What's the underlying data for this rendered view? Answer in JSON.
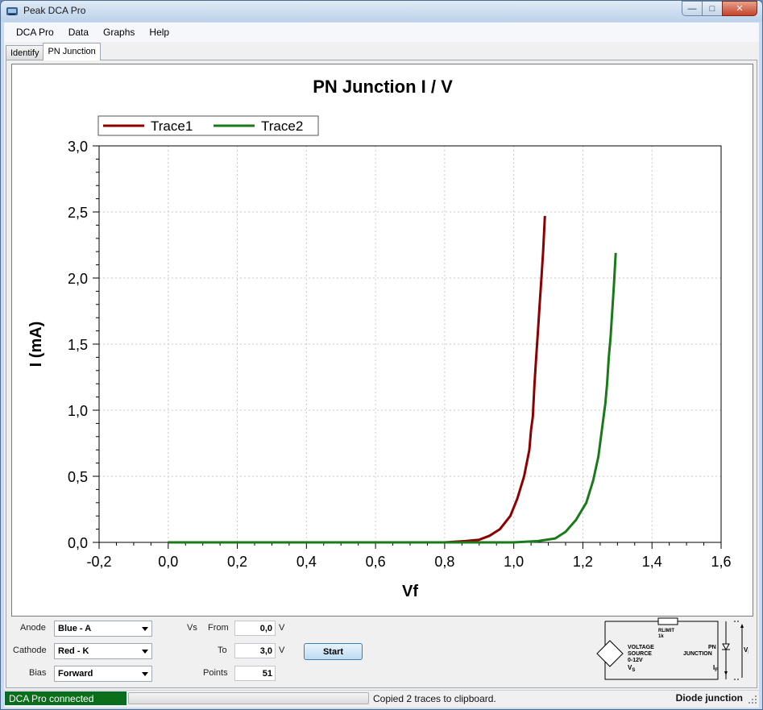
{
  "window": {
    "title": "Peak DCA Pro",
    "min_glyph": "—",
    "max_glyph": "□",
    "close_glyph": "✕"
  },
  "menu": [
    "DCA Pro",
    "Data",
    "Graphs",
    "Help"
  ],
  "tabs": [
    "Identify",
    "PN Junction"
  ],
  "chart_data": {
    "type": "line",
    "title": "PN Junction I / V",
    "xlabel": "Vf",
    "ylabel": "I (mA)",
    "xlim": [
      -0.2,
      1.6
    ],
    "ylim": [
      0.0,
      3.0
    ],
    "xticks": [
      "-0,2",
      "0,0",
      "0,2",
      "0,4",
      "0,6",
      "0,8",
      "1,0",
      "1,2",
      "1,4",
      "1,6"
    ],
    "yticks": [
      "0,0",
      "0,5",
      "1,0",
      "1,5",
      "2,0",
      "2,5",
      "3,0"
    ],
    "grid": true,
    "legend_position": "top-left",
    "series": [
      {
        "name": "Trace1",
        "color": "#8b0000",
        "points": [
          [
            0.0,
            0.0
          ],
          [
            0.4,
            0.0
          ],
          [
            0.8,
            0.0
          ],
          [
            0.86,
            0.01
          ],
          [
            0.9,
            0.02
          ],
          [
            0.93,
            0.05
          ],
          [
            0.96,
            0.1
          ],
          [
            0.99,
            0.2
          ],
          [
            1.01,
            0.33
          ],
          [
            1.03,
            0.5
          ],
          [
            1.045,
            0.7
          ],
          [
            1.05,
            0.85
          ],
          [
            1.055,
            0.95
          ],
          [
            1.06,
            1.2
          ],
          [
            1.065,
            1.4
          ],
          [
            1.07,
            1.6
          ],
          [
            1.075,
            1.8
          ],
          [
            1.08,
            2.0
          ],
          [
            1.085,
            2.2
          ],
          [
            1.09,
            2.47
          ]
        ]
      },
      {
        "name": "Trace2",
        "color": "#1a7a1a",
        "points": [
          [
            0.0,
            0.0
          ],
          [
            0.4,
            0.0
          ],
          [
            0.8,
            0.0
          ],
          [
            1.0,
            0.0
          ],
          [
            1.07,
            0.01
          ],
          [
            1.12,
            0.03
          ],
          [
            1.15,
            0.08
          ],
          [
            1.18,
            0.17
          ],
          [
            1.21,
            0.3
          ],
          [
            1.23,
            0.47
          ],
          [
            1.245,
            0.65
          ],
          [
            1.255,
            0.85
          ],
          [
            1.265,
            1.05
          ],
          [
            1.27,
            1.2
          ],
          [
            1.275,
            1.4
          ],
          [
            1.28,
            1.55
          ],
          [
            1.285,
            1.75
          ],
          [
            1.29,
            1.95
          ],
          [
            1.295,
            2.19
          ]
        ]
      }
    ]
  },
  "controls": {
    "anode_label": "Anode",
    "anode_value": "Blue - A",
    "cathode_label": "Cathode",
    "cathode_value": "Red - K",
    "bias_label": "Bias",
    "bias_value": "Forward",
    "vs_label": "Vs",
    "from_label": "From",
    "from_value": "0,0",
    "from_unit": "V",
    "to_label": "To",
    "to_value": "3,0",
    "to_unit": "V",
    "points_label": "Points",
    "points_value": "51",
    "start_label": "Start"
  },
  "schematic": {
    "rlimit": "RLIMIT",
    "rlimit_value": "1k",
    "source_line1": "VOLTAGE",
    "source_line2": "SOURCE",
    "source_line3": "0-12V",
    "vs": "V",
    "vs_sub": "S",
    "junction_line1": "PN",
    "junction_line2": "JUNCTION",
    "if": "I",
    "if_sub": "F",
    "vf": "V",
    "vf_sub": "F"
  },
  "status": {
    "connection": "DCA Pro connected",
    "connection_color": "#0b6e1a",
    "message": "Copied 2 traces to clipboard.",
    "mode": "Diode junction"
  }
}
